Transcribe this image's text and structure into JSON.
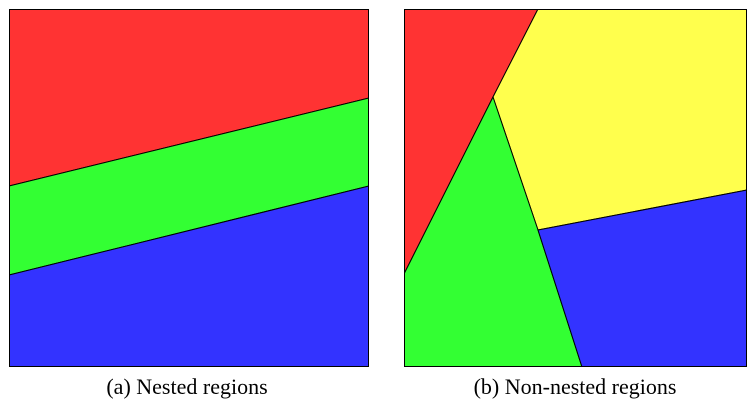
{
  "figures": [
    {
      "caption": "(a)  Nested regions",
      "regions": [
        {
          "name": "red",
          "color": "#ff3333"
        },
        {
          "name": "green",
          "color": "#33ff33"
        },
        {
          "name": "blue",
          "color": "#3333ff"
        }
      ]
    },
    {
      "caption": "(b)  Non-nested regions",
      "regions": [
        {
          "name": "red",
          "color": "#ff3333"
        },
        {
          "name": "yellow",
          "color": "#ffff4d"
        },
        {
          "name": "green",
          "color": "#33ff33"
        },
        {
          "name": "blue",
          "color": "#3333ff"
        }
      ]
    }
  ]
}
